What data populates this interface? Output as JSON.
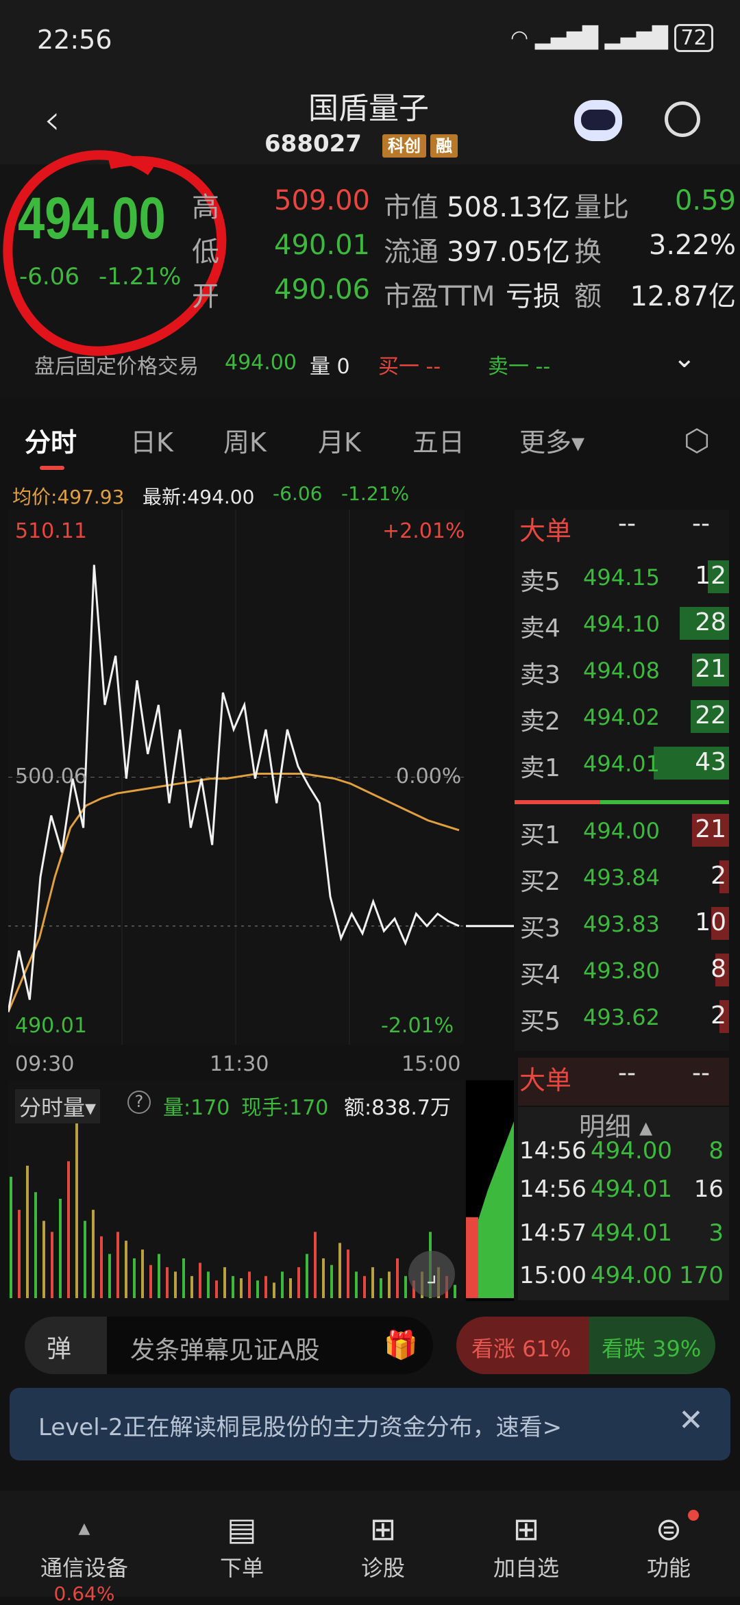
{
  "status": {
    "time": "22:56",
    "battery": "72"
  },
  "header": {
    "title": "国盾量子",
    "code": "688027",
    "tags": [
      "科创",
      "融"
    ]
  },
  "quote": {
    "price": "494.00",
    "change": "-6.06",
    "change_pct": "-1.21%",
    "fields": [
      {
        "label": "高",
        "value": "509.00",
        "color": "red"
      },
      {
        "label": "低",
        "value": "490.01",
        "color": "green"
      },
      {
        "label": "开",
        "value": "490.06",
        "color": "green"
      }
    ],
    "mid": [
      {
        "label": "市值",
        "value": "508.13亿"
      },
      {
        "label": "流通",
        "value": "397.05亿"
      },
      {
        "label": "市盈TTM",
        "value": "亏损"
      }
    ],
    "right": [
      {
        "label": "量比",
        "value": "0.59"
      },
      {
        "label": "换",
        "value": "3.22%"
      },
      {
        "label": "额",
        "value": "12.87亿"
      }
    ]
  },
  "after_hours": {
    "label": "盘后固定价格交易",
    "price": "494.00",
    "vol_label": "量 0",
    "buy1": "买一 --",
    "sell1": "卖一 --"
  },
  "tabs": [
    "分时",
    "日K",
    "周K",
    "月K",
    "五日",
    "更多▾"
  ],
  "info": {
    "avg_label": "均价:",
    "avg": "497.93",
    "latest": "最新:494.00",
    "chg": "-6.06",
    "pct": "-1.21%"
  },
  "chart_data": {
    "type": "line",
    "y_top_label": "510.11",
    "y_mid_label": "500.06",
    "y_bot_label": "490.01",
    "pct_top": "+2.01%",
    "pct_mid": "0.00%",
    "pct_bot": "-2.01%",
    "x_ticks": [
      "09:30",
      "11:30",
      "15:00"
    ],
    "ylim": [
      490.01,
      510.11
    ],
    "prev_close": 500.06,
    "price": [
      490.5,
      493,
      491,
      496,
      498.5,
      497,
      500,
      498,
      508.7,
      503,
      505,
      500,
      504,
      501,
      503,
      499,
      502,
      498,
      500,
      497.3,
      503.5,
      502,
      503,
      500,
      502,
      499,
      502,
      500.5,
      499.7,
      499,
      495.2,
      493.5,
      494.5,
      493.7,
      495,
      493.8,
      494.3,
      493.3,
      494.5,
      494,
      494.5,
      494.2,
      494
    ],
    "avg": [
      490.5,
      492,
      493.5,
      496,
      498,
      498.9,
      499.2,
      499.4,
      499.5,
      499.6,
      499.7,
      499.8,
      499.9,
      500,
      500,
      500.1,
      500.2,
      500.2,
      500.2,
      500.2,
      500.1,
      500,
      499.8,
      499.5,
      499.2,
      498.9,
      498.6,
      498.3,
      498.1,
      497.9
    ],
    "volume": {
      "label": "分时量▾",
      "vol": "量:170",
      "hand": "现手:170",
      "amount": "额:838.7万",
      "values": [
        55,
        40,
        60,
        48,
        35,
        30,
        45,
        62,
        90,
        35,
        40,
        28,
        20,
        30,
        26,
        18,
        22,
        15,
        20,
        14,
        12,
        18,
        10,
        16,
        12,
        8,
        14,
        10,
        9,
        12,
        8,
        10,
        7,
        12,
        9,
        14,
        20,
        30,
        18,
        15,
        25,
        22,
        12,
        10,
        14,
        9,
        12,
        18,
        10,
        8,
        12,
        30,
        14,
        10,
        6
      ]
    }
  },
  "orderbook": {
    "big_label": "大单",
    "dash": "--",
    "sells": [
      {
        "label": "卖5",
        "price": "494.15",
        "vol": 12
      },
      {
        "label": "卖4",
        "price": "494.10",
        "vol": 28
      },
      {
        "label": "卖3",
        "price": "494.08",
        "vol": 21
      },
      {
        "label": "卖2",
        "price": "494.02",
        "vol": 22
      },
      {
        "label": "卖1",
        "price": "494.01",
        "vol": 43
      }
    ],
    "buys": [
      {
        "label": "买1",
        "price": "494.00",
        "vol": 21
      },
      {
        "label": "买2",
        "price": "493.84",
        "vol": 2
      },
      {
        "label": "买3",
        "price": "493.83",
        "vol": 10
      },
      {
        "label": "买4",
        "price": "493.80",
        "vol": 8
      },
      {
        "label": "买5",
        "price": "493.62",
        "vol": 2
      }
    ]
  },
  "details": {
    "big_label": "大单",
    "title": "明细 ▴",
    "ticks": [
      {
        "t": "14:56",
        "p": "494.00",
        "v": "8"
      },
      {
        "t": "14:56",
        "p": "494.01",
        "v": "16"
      },
      {
        "t": "14:57",
        "p": "494.01",
        "v": "3"
      },
      {
        "t": "15:00",
        "p": "494.00",
        "v": "170"
      }
    ]
  },
  "danmu": {
    "badge": "弹",
    "placeholder": "发条弹幕见证A股",
    "up": "看涨 61%",
    "down": "看跌 39%",
    "up_pct": 61
  },
  "banner": {
    "text": "Level-2正在解读桐昆股份的主力资金分布，速看>"
  },
  "nav": [
    {
      "label": "通信设备",
      "sub": "0.64%",
      "icon": "▲"
    },
    {
      "label": "下单",
      "icon": "▤"
    },
    {
      "label": "诊股",
      "icon": "⊞"
    },
    {
      "label": "加自选",
      "icon": "⊞"
    },
    {
      "label": "功能",
      "icon": "⊜"
    }
  ]
}
